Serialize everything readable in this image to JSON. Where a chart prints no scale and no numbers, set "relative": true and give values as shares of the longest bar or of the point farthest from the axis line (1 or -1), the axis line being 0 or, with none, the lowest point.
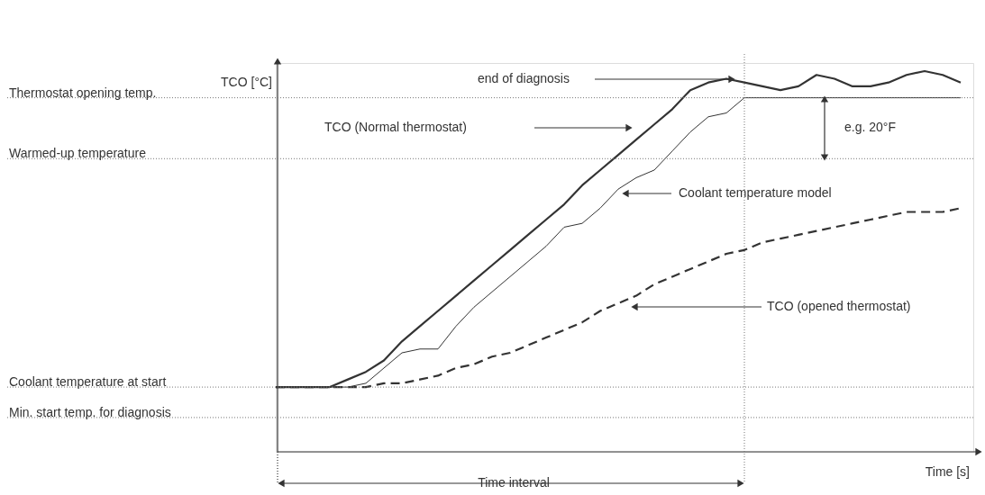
{
  "chart_data": {
    "type": "line",
    "relative": true,
    "xlabel": "Time [s]",
    "ylabel": "TCO [°C]",
    "grid": false,
    "categories": [
      null,
      null,
      null,
      null,
      null,
      null,
      null,
      null,
      null,
      null,
      null,
      null,
      null,
      null,
      null,
      null,
      null,
      null,
      null,
      null,
      null,
      null,
      null,
      null,
      null,
      null,
      null,
      null,
      null,
      null,
      null,
      null,
      null,
      null,
      null,
      null,
      null,
      null,
      null
    ],
    "series": [
      {
        "color": "#333333",
        "line_style": "solid",
        "values": [
          0.17,
          0.17,
          0.17,
          0.17,
          0.19,
          0.21,
          0.24,
          0.29,
          0.33,
          0.37,
          0.41,
          0.45,
          0.49,
          0.53,
          0.57,
          0.61,
          0.65,
          0.7,
          0.74,
          0.78,
          0.82,
          0.86,
          0.9,
          0.95,
          0.97,
          0.98,
          0.97,
          0.96,
          0.95,
          0.96,
          0.99,
          0.98,
          0.96,
          0.96,
          0.97,
          0.99,
          1.0,
          0.99,
          0.97
        ]
      },
      {
        "color": "#333333",
        "line_style": "solid",
        "values": [
          0.17,
          0.17,
          0.17,
          0.17,
          0.17,
          0.18,
          0.22,
          0.26,
          0.27,
          0.27,
          0.33,
          0.38,
          0.42,
          0.46,
          0.5,
          0.54,
          0.59,
          0.6,
          0.64,
          0.69,
          0.72,
          0.74,
          0.79,
          0.84,
          0.88,
          0.89,
          0.93,
          0.93,
          0.93,
          0.93,
          0.93,
          0.93,
          0.93,
          0.93,
          0.93,
          0.93,
          0.93,
          0.93,
          0.93
        ]
      },
      {
        "color": "#333333",
        "line_style": "dashed",
        "values": [
          0.17,
          0.17,
          0.17,
          0.17,
          0.17,
          0.17,
          0.18,
          0.18,
          0.19,
          0.2,
          0.22,
          0.23,
          0.25,
          0.26,
          0.28,
          0.3,
          0.32,
          0.34,
          0.37,
          0.39,
          0.41,
          0.44,
          0.46,
          0.48,
          0.5,
          0.52,
          0.53,
          0.55,
          0.56,
          0.57,
          0.58,
          0.59,
          0.6,
          0.61,
          0.62,
          0.63,
          0.63,
          0.63,
          0.64
        ]
      }
    ],
    "ref_lines": [
      {
        "axis": "y",
        "value": 0.93,
        "label": "Thermostat opening temp.",
        "line_style": "dotted"
      },
      {
        "axis": "y",
        "value": 0.77,
        "label": "Warmed-up temperature",
        "line_style": "dotted"
      },
      {
        "axis": "y",
        "value": 0.17,
        "label": "Coolant temperature at start",
        "line_style": "dotted"
      },
      {
        "axis": "y",
        "value": 0.09,
        "label": "Min. start temp. for diagnosis",
        "line_style": "dotted"
      }
    ],
    "annotations": [
      "end of diagnosis",
      "TCO (Normal thermostat)",
      "Coolant temperature model",
      "TCO (opened thermostat)",
      "e.g. 20°F",
      "Time interval"
    ]
  }
}
